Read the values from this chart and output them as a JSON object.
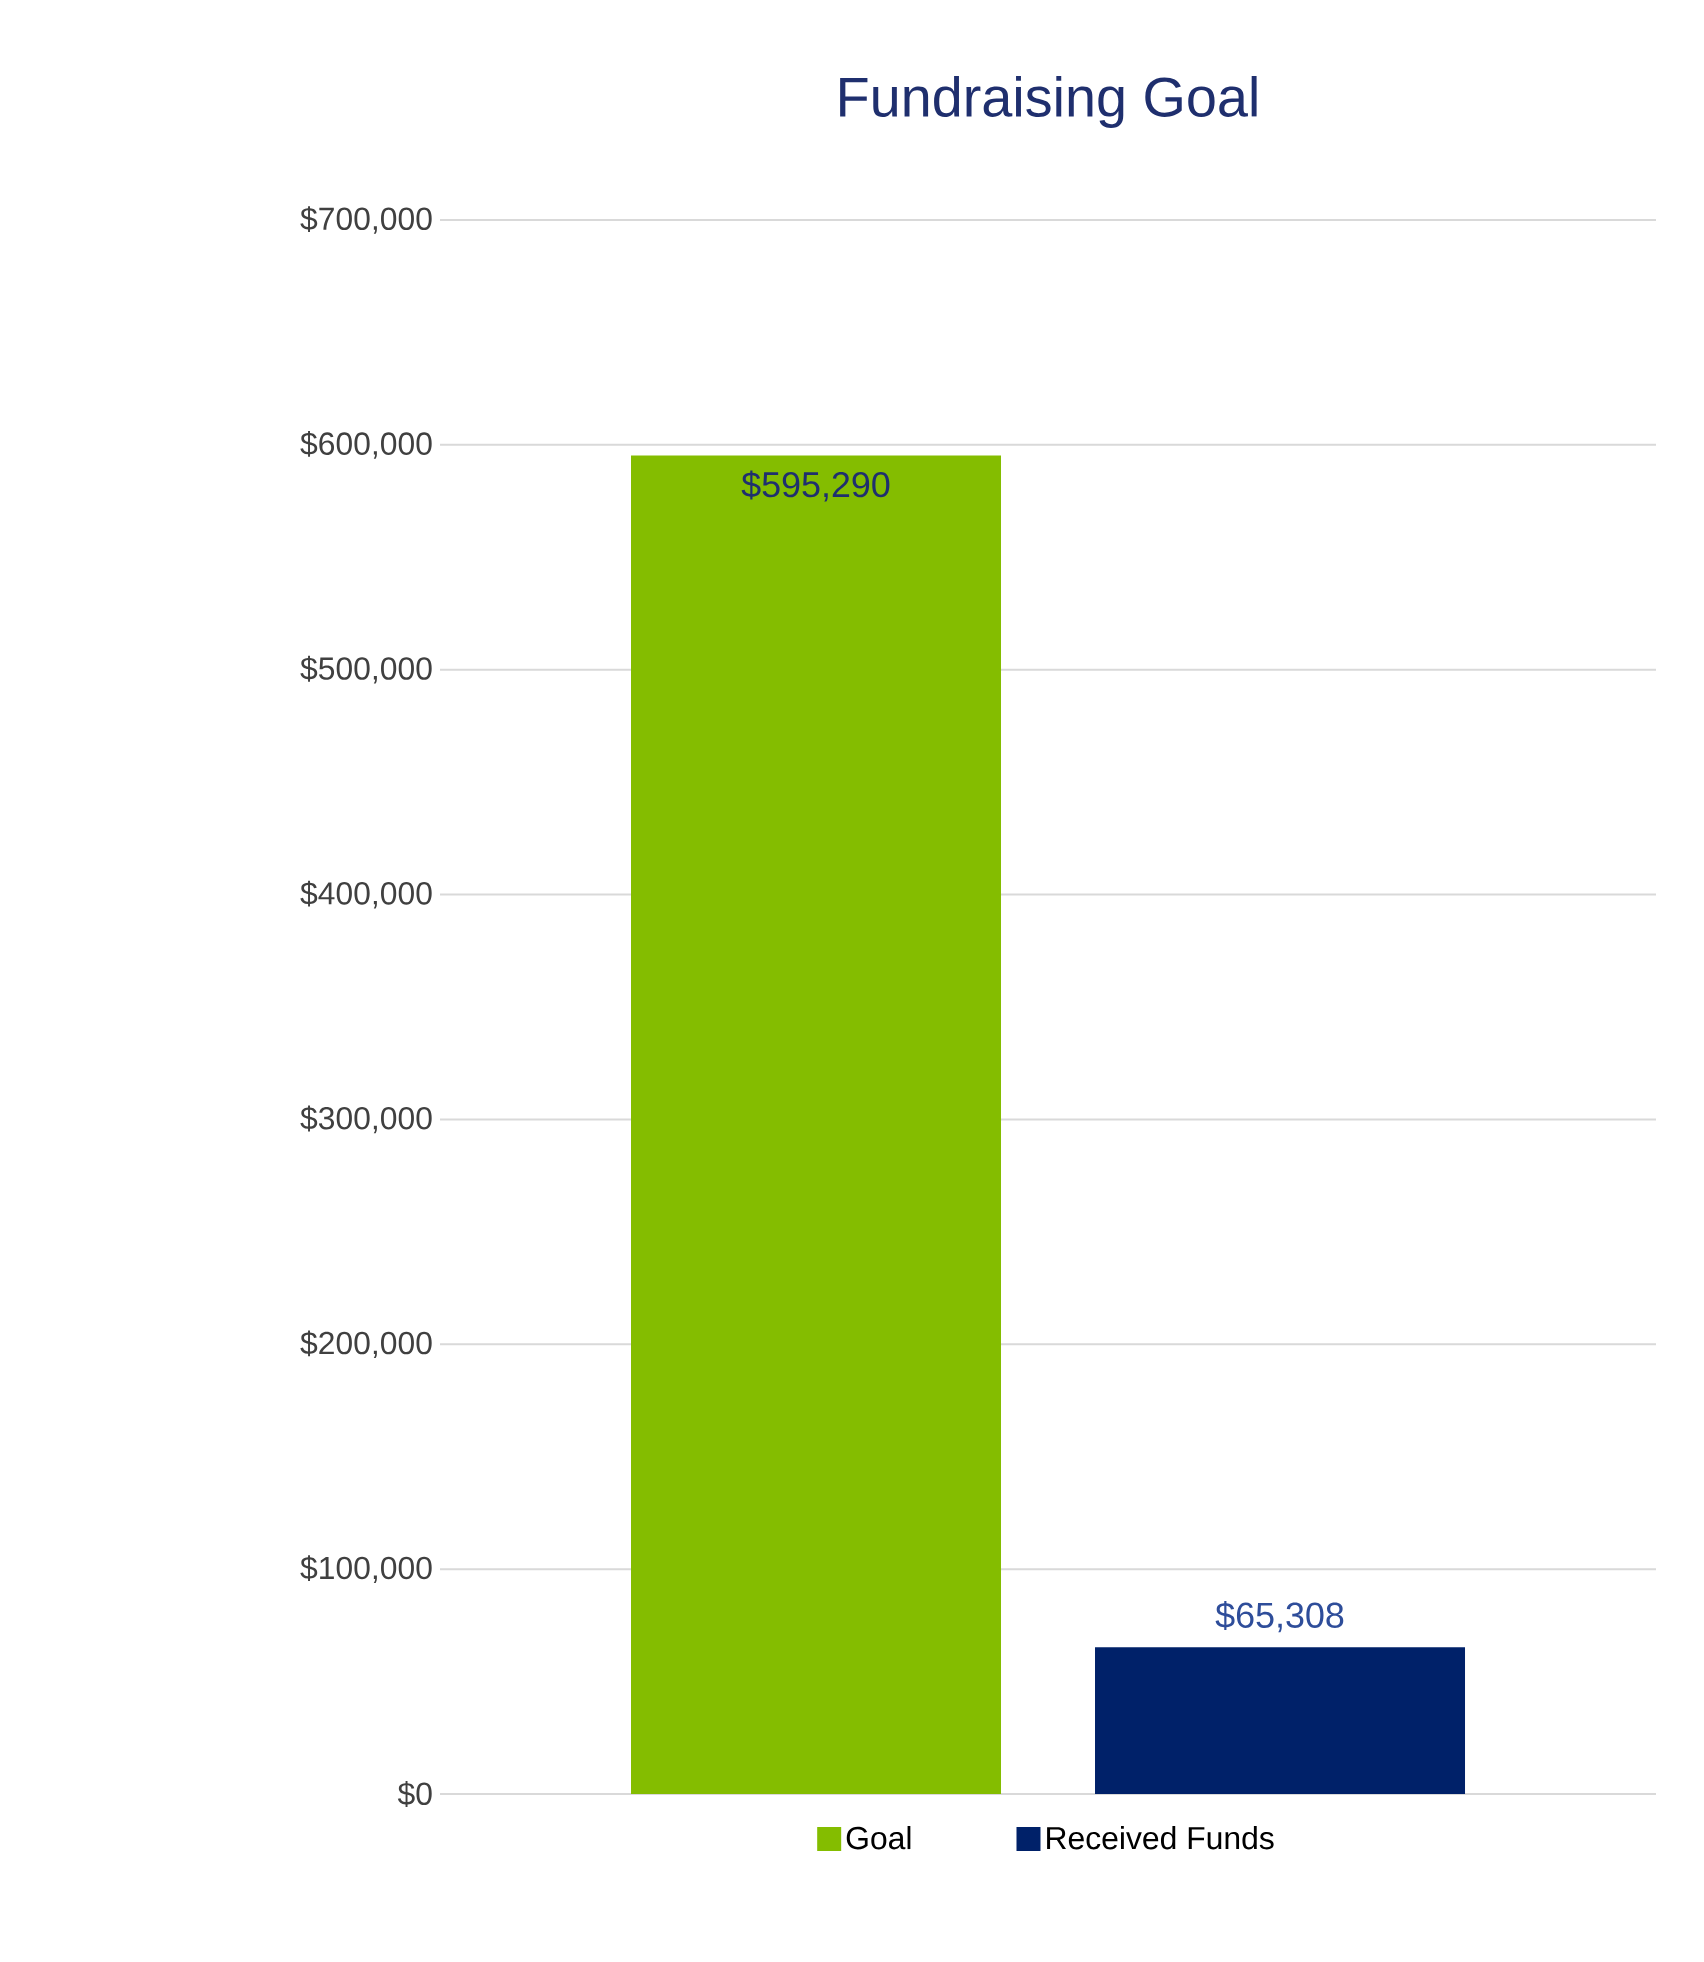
{
  "chart_data": {
    "type": "bar",
    "title": "Fundraising Goal",
    "categories": [
      null
    ],
    "series": [
      {
        "name": "Goal",
        "color": "#84bd00",
        "values": [
          595290
        ],
        "value_labels": [
          "$595,290"
        ]
      },
      {
        "name": "Received Funds",
        "color": "#002169",
        "values": [
          65308
        ],
        "value_labels": [
          "$65,308"
        ]
      }
    ],
    "ylim": [
      0,
      700000
    ],
    "yticks": [
      {
        "value": 0,
        "label": "$0"
      },
      {
        "value": 100000,
        "label": "$100,000"
      },
      {
        "value": 200000,
        "label": "$200,000"
      },
      {
        "value": 300000,
        "label": "$300,000"
      },
      {
        "value": 400000,
        "label": "$400,000"
      },
      {
        "value": 500000,
        "label": "$500,000"
      },
      {
        "value": 600000,
        "label": "$600,000"
      },
      {
        "value": 700000,
        "label": "$700,000"
      }
    ],
    "grid": "y",
    "legend": "bottom"
  }
}
